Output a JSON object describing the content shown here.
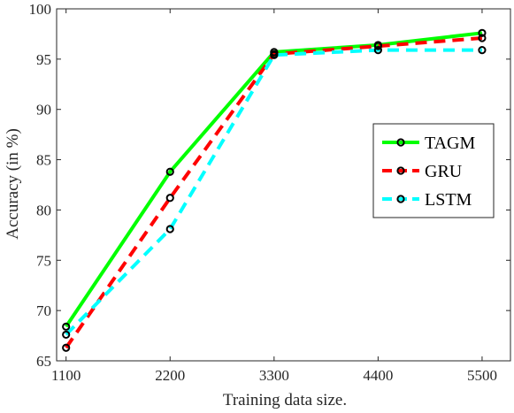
{
  "chart_data": {
    "type": "line",
    "xlabel": "Training data size.",
    "ylabel": "Accuracy (in %)",
    "x": [
      1100,
      2200,
      3300,
      4400,
      5500
    ],
    "x_tick_labels": [
      "1100",
      "2200",
      "3300",
      "4400",
      "5500"
    ],
    "xlim": [
      1000,
      5800
    ],
    "ylim": [
      65,
      100
    ],
    "y_ticks": [
      65,
      70,
      75,
      80,
      85,
      90,
      95,
      100
    ],
    "grid": false,
    "legend_placement": "right",
    "series": [
      {
        "name": "TAGM",
        "values": [
          68.4,
          83.8,
          95.7,
          96.4,
          97.6
        ],
        "color": "#00ff00",
        "style": "solid"
      },
      {
        "name": "GRU",
        "values": [
          66.3,
          81.2,
          95.5,
          96.3,
          97.1
        ],
        "color": "#ff0000",
        "style": "dashed"
      },
      {
        "name": "LSTM",
        "values": [
          67.6,
          78.1,
          95.4,
          95.9,
          95.9
        ],
        "color": "#00ffff",
        "style": "dashed"
      }
    ]
  }
}
